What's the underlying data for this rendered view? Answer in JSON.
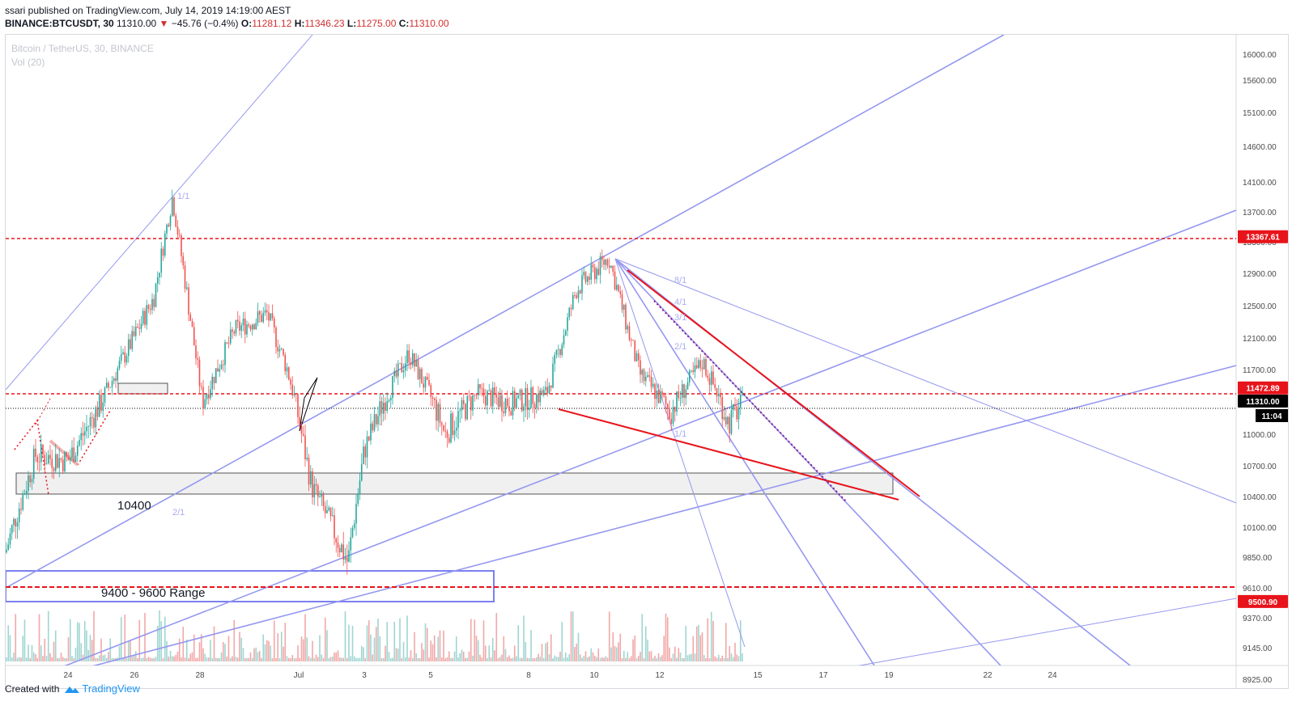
{
  "header": {
    "publisher": "ssari published on TradingView.com, July 14, 2019 14:19:00 AEST",
    "symbol": "BINANCE:BTCUSDT, 30",
    "last": "11310.00",
    "change_arrow": "▼",
    "change": "−45.76 (−0.4%)",
    "open_label": "O:",
    "open": "11281.12",
    "high_label": "H:",
    "high": "11346.23",
    "low_label": "L:",
    "low": "11275.00",
    "close_label": "C:",
    "close": "11310.00"
  },
  "legend": {
    "instrument": "Bitcoin / TetherUS, 30, BINANCE",
    "volume": "Vol (20)"
  },
  "footer": {
    "created_with": "Created with",
    "brand": "TradingView"
  },
  "colors": {
    "up": "#26a69a",
    "down": "#ef5350",
    "red_line": "#e8141b",
    "lavender": "#9598f0",
    "price_tag": "#000000"
  },
  "chart_data": {
    "type": "candlestick",
    "title": "Bitcoin / TetherUS, 30, BINANCE",
    "y_ticks": [
      16000,
      15600,
      15100,
      14600,
      14100,
      13700,
      13300,
      12900,
      12500,
      12100,
      11700,
      11300,
      11000,
      10700,
      10400,
      10100,
      9850,
      9610,
      9370,
      9145,
      8925
    ],
    "y_tick_labels": [
      "16000.00",
      "15600.00",
      "15100.00",
      "14600.00",
      "14100.00",
      "13700.00",
      "13300.00",
      "12900.00",
      "12500.00",
      "12100.00",
      "11700.00",
      "11300.00",
      "11000.00",
      "10700.00",
      "10400.00",
      "10100.00",
      "9850.00",
      "9610.00",
      "9370.00",
      "9145.00",
      "8925.00"
    ],
    "x_ticks": [
      "24",
      "26",
      "28",
      "Jul",
      "3",
      "5",
      "8",
      "10",
      "12",
      "15",
      "17",
      "19",
      "22",
      "24"
    ],
    "horizontal_levels": [
      {
        "value": 13367.61,
        "label": "13367.61",
        "style": "dashed-red"
      },
      {
        "value": 11472.89,
        "label": "11472.89",
        "style": "dashed-red"
      },
      {
        "value": 11310.0,
        "label": "11310.00",
        "style": "dotted-black"
      },
      {
        "value": 9500.9,
        "label": "9500.90",
        "style": "dashed-red"
      }
    ],
    "countdown": "11:04",
    "annotations": [
      "10400",
      "9400 - 9600 Range"
    ],
    "gann_labels": [
      "1/1",
      "8/1",
      "4/1",
      "3/1",
      "2/1",
      "1/1",
      "2/1"
    ],
    "price_path_keypoints": [
      {
        "x": "Jun 22",
        "close": 9890
      },
      {
        "x": "Jun 23",
        "close": 10800
      },
      {
        "x": "Jun 24",
        "close": 10750
      },
      {
        "x": "Jun 25",
        "close": 11300
      },
      {
        "x": "Jun 26",
        "close": 12600
      },
      {
        "x": "Jun 26",
        "close": 13900
      },
      {
        "x": "Jun 27",
        "close": 11300
      },
      {
        "x": "Jun 28",
        "close": 12200
      },
      {
        "x": "Jun 29",
        "close": 12400
      },
      {
        "x": "Jun 30",
        "close": 11700
      },
      {
        "x": "Jul 1",
        "close": 10500
      },
      {
        "x": "Jul 2",
        "close": 9800
      },
      {
        "x": "Jul 3",
        "close": 10850
      },
      {
        "x": "Jul 4",
        "close": 11900
      },
      {
        "x": "Jul 5",
        "close": 11000
      },
      {
        "x": "Jul 6",
        "close": 11400
      },
      {
        "x": "Jul 7",
        "close": 11300
      },
      {
        "x": "Jul 8",
        "close": 11400
      },
      {
        "x": "Jul 9",
        "close": 12700
      },
      {
        "x": "Jul 10",
        "close": 13100
      },
      {
        "x": "Jul 11",
        "close": 11650
      },
      {
        "x": "Jul 12",
        "close": 11200
      },
      {
        "x": "Jul 13",
        "close": 11800
      },
      {
        "x": "Jul 14",
        "close": 11100
      },
      {
        "x": "Jul 14",
        "close": 11310
      }
    ]
  }
}
